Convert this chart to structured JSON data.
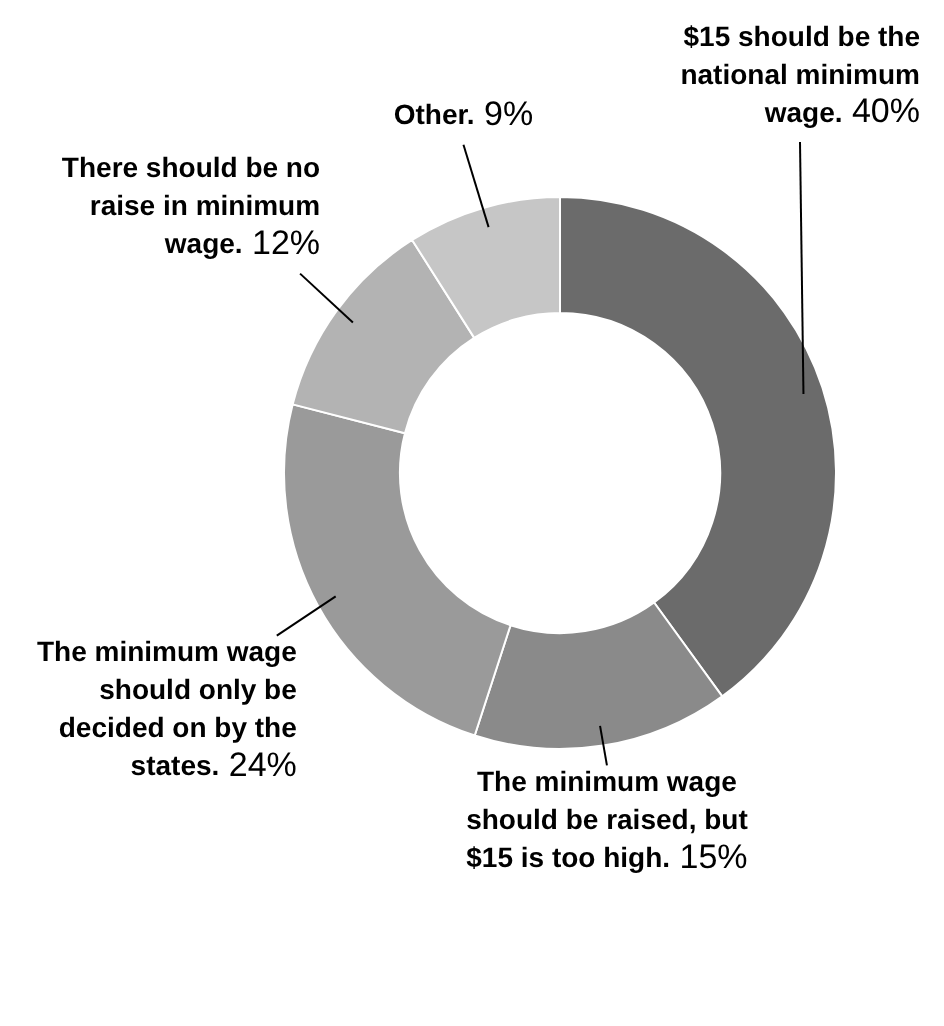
{
  "chart_data": {
    "type": "donut",
    "categories": [
      "$15 should be the national minimum wage.",
      "The minimum wage should be raised, but $15 is too high.",
      "The minimum wage should only be decided on by the states.",
      "There should be no raise in minimum wage.",
      "Other."
    ],
    "values": [
      40,
      15,
      24,
      12,
      9
    ],
    "value_labels": [
      "40%",
      "15%",
      "24%",
      "12%",
      "9%"
    ],
    "colors": [
      "#6b6b6b",
      "#8a8a8a",
      "#9a9a9a",
      "#b3b3b3",
      "#c6c6c6"
    ],
    "legend": false
  }
}
